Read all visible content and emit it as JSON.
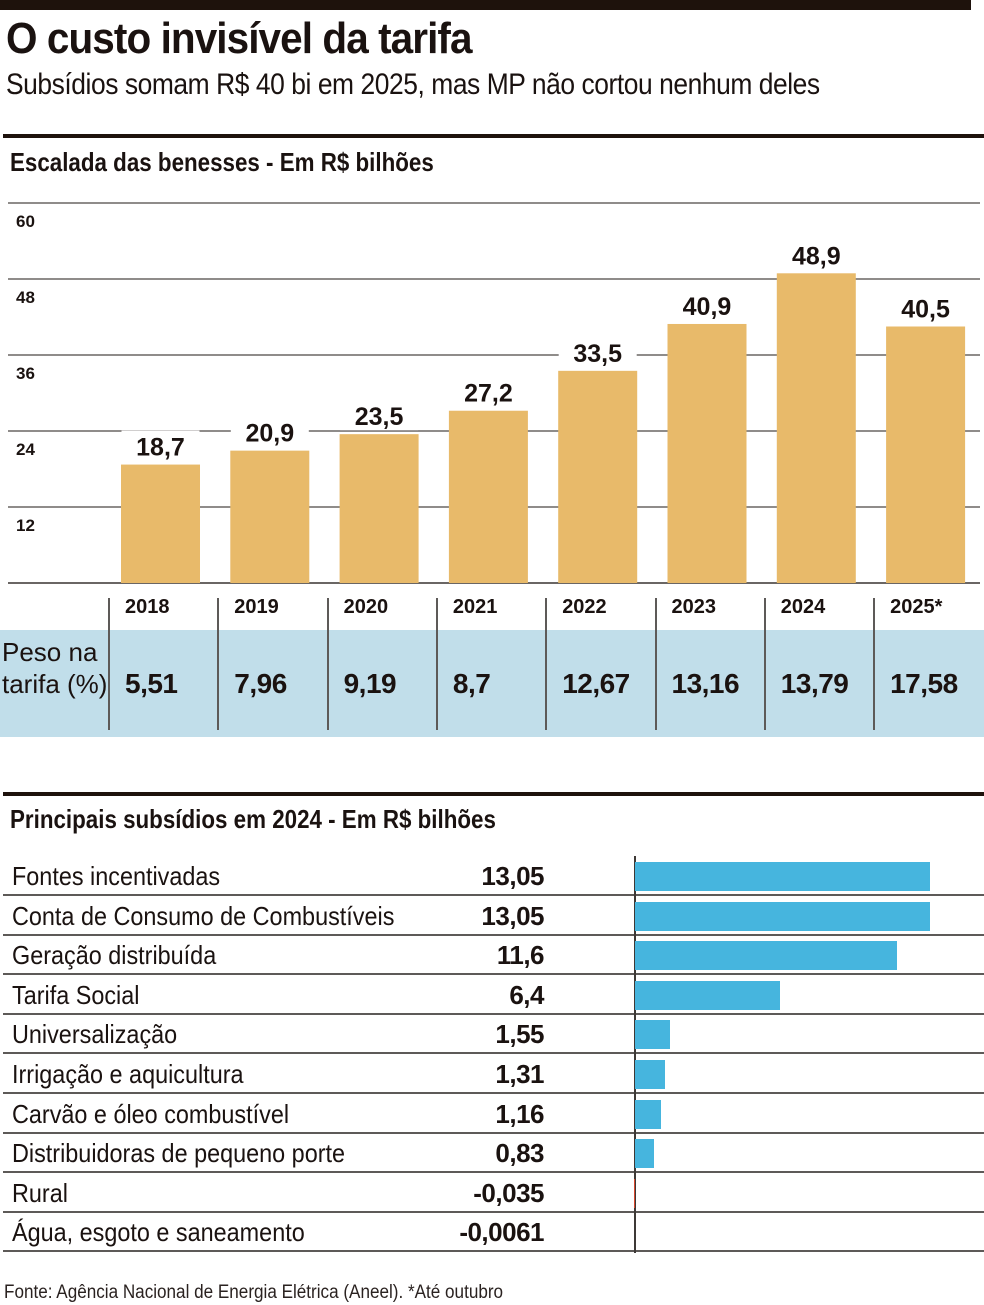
{
  "header": {
    "title": "O custo invisível da tarifa",
    "subtitle": "Subsídios somam R$ 40 bi em 2025, mas MP não cortou nenhum deles"
  },
  "colors": {
    "bar_tan": "#E8BA6A",
    "bar_blue": "#46B5DE",
    "negative_red": "#D9492E",
    "band_light_blue": "#C1DEEA",
    "ink": "#1A1210"
  },
  "chart_data": [
    {
      "type": "bar",
      "title": "Escalada das benesses - Em R$ bilhões",
      "xlabel": "",
      "ylabel": "R$ bilhões",
      "categories": [
        "2018",
        "2019",
        "2020",
        "2021",
        "2022",
        "2023",
        "2024",
        "2025*"
      ],
      "values": [
        18.7,
        20.9,
        23.5,
        27.2,
        33.5,
        40.9,
        48.9,
        40.5
      ],
      "value_labels": [
        "18,7",
        "20,9",
        "23,5",
        "27,2",
        "33,5",
        "40,9",
        "48,9",
        "40,5"
      ],
      "ylim": [
        0,
        60
      ],
      "yticks": [
        12,
        24,
        36,
        48,
        60
      ],
      "grid": true,
      "legend": "none"
    },
    {
      "type": "table",
      "title": "Peso na tarifa (%)",
      "row_label": "Peso na tarifa (%)",
      "categories": [
        "2018",
        "2019",
        "2020",
        "2021",
        "2022",
        "2023",
        "2024",
        "2025*"
      ],
      "values": [
        5.51,
        7.96,
        9.19,
        8.7,
        12.67,
        13.16,
        13.79,
        17.58
      ],
      "value_labels": [
        "5,51",
        "7,96",
        "9,19",
        "8,7",
        "12,67",
        "13,16",
        "13,79",
        "17,58"
      ]
    },
    {
      "type": "bar",
      "orientation": "horizontal",
      "title": "Principais subsídios em 2024 - Em R$ bilhões",
      "categories": [
        "Fontes incentivadas",
        "Conta de Consumo de Combustíveis",
        "Geração distribuída",
        "Tarifa Social",
        "Universalização",
        "Irrigação e aquicultura",
        "Carvão e óleo combustível",
        "Distribuidoras de pequeno porte",
        "Rural",
        "Água, esgoto e saneamento"
      ],
      "values": [
        13.05,
        13.05,
        11.6,
        6.4,
        1.55,
        1.31,
        1.16,
        0.83,
        -0.035,
        -0.0061
      ],
      "value_labels": [
        "13,05",
        "13,05",
        "11,6",
        "6,4",
        "1,55",
        "1,31",
        "1,16",
        "0,83",
        "-0,035",
        "-0,0061"
      ],
      "xlim": [
        0,
        13.05
      ],
      "grid": false,
      "legend": "none"
    }
  ],
  "footer": {
    "source": "Fonte: Agência Nacional de Energia Elétrica (Aneel). *Até outubro"
  }
}
